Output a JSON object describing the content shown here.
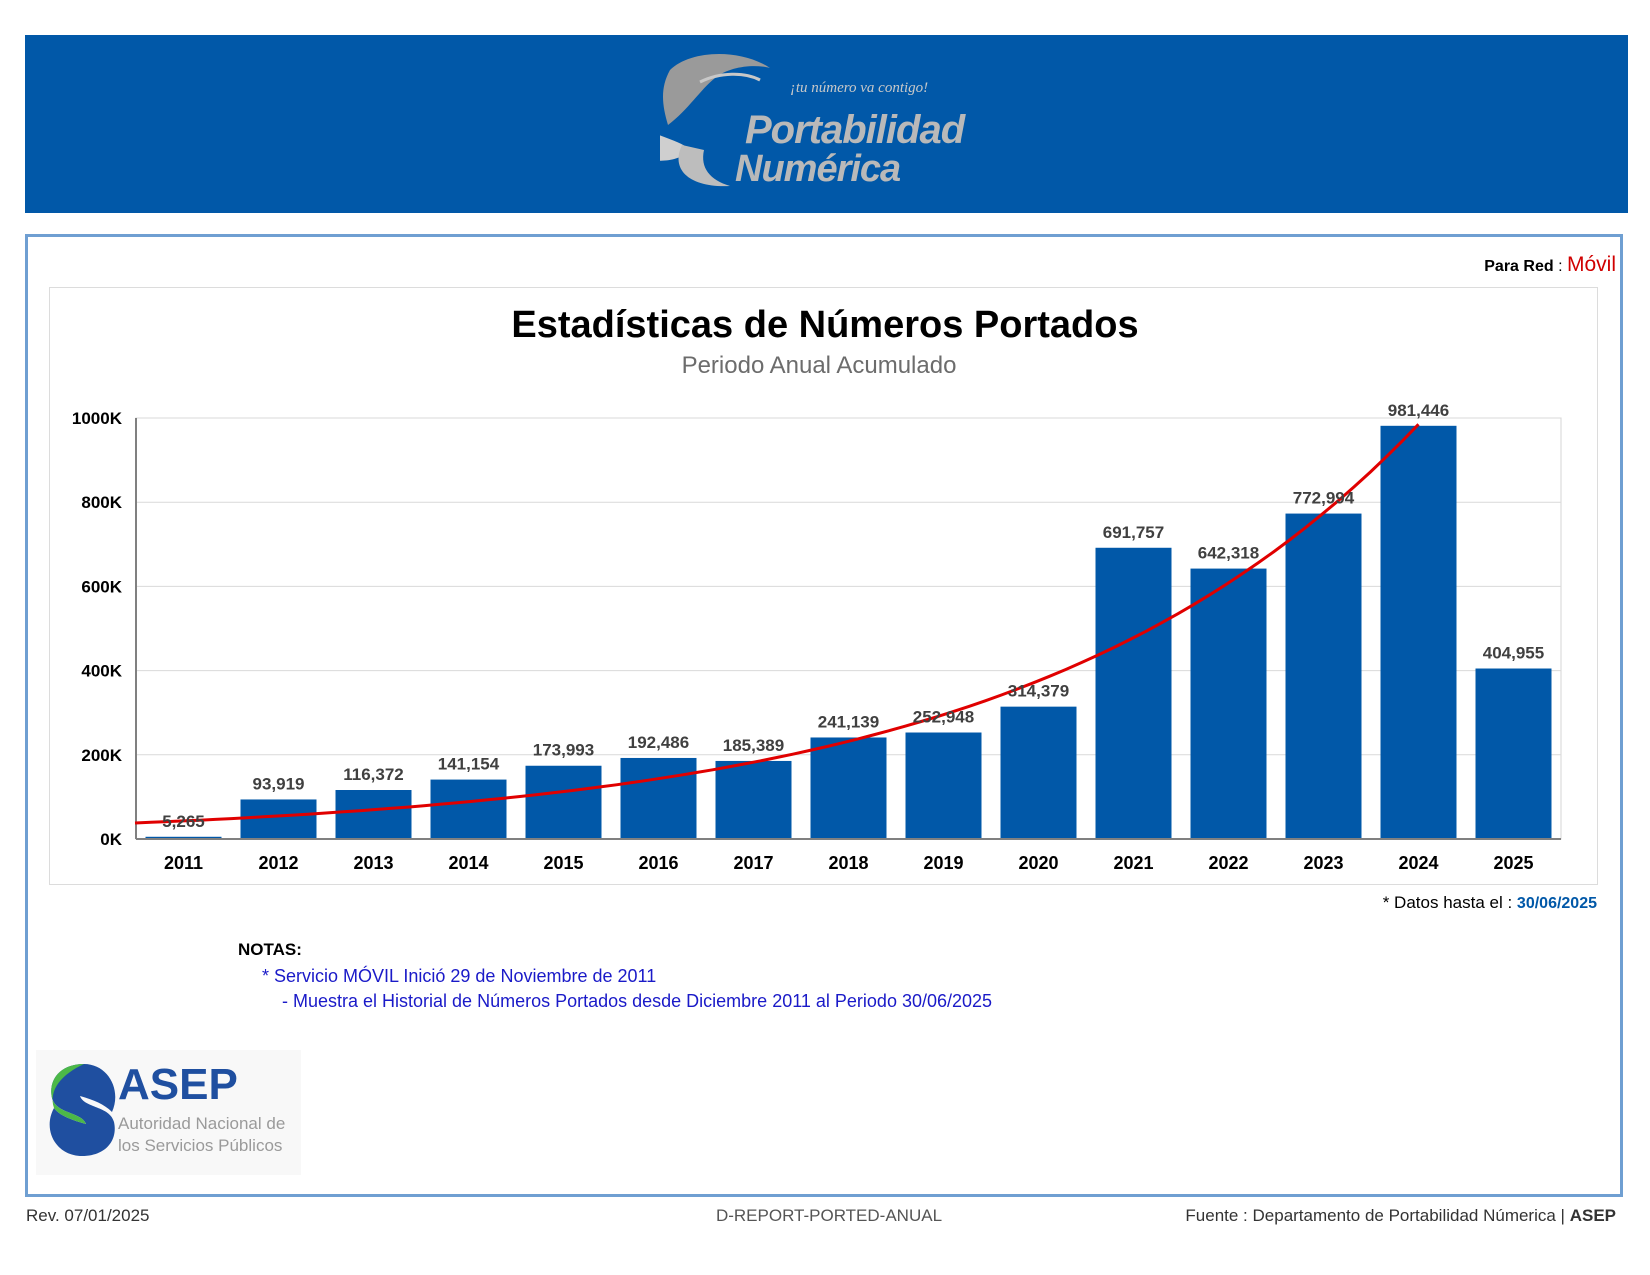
{
  "header": {
    "logo_tagline": "¡tu número va contigo!",
    "logo_word1": "Portabilidad",
    "logo_word2": "Numérica",
    "banner_color": "#0158a8"
  },
  "network": {
    "label": "Para Red",
    "separator": ":",
    "value": "Móvil"
  },
  "chart_data": {
    "type": "bar",
    "title": "Estadísticas de Números Portados",
    "subtitle": "Periodo Anual Acumulado",
    "xlabel": "",
    "ylabel": "",
    "categories": [
      "2011",
      "2012",
      "2013",
      "2014",
      "2015",
      "2016",
      "2017",
      "2018",
      "2019",
      "2020",
      "2021",
      "2022",
      "2023",
      "2024",
      "2025"
    ],
    "values": [
      5265,
      93919,
      116372,
      141154,
      173993,
      192486,
      185389,
      241139,
      252948,
      314379,
      691757,
      642318,
      772994,
      981446,
      404955
    ],
    "value_labels": [
      "5,265",
      "93,919",
      "116,372",
      "141,154",
      "173,993",
      "192,486",
      "185,389",
      "241,139",
      "252,948",
      "314,379",
      "691,757",
      "642,318",
      "772,994",
      "981,446",
      "404,955"
    ],
    "ylim": [
      0,
      1000000
    ],
    "yticks": [
      0,
      200000,
      400000,
      600000,
      800000,
      1000000
    ],
    "ytick_labels": [
      "0K",
      "200K",
      "400K",
      "600K",
      "800K",
      "1000K"
    ],
    "grid": true,
    "trendline": {
      "type": "exponential",
      "color": "#e00000",
      "start_value": 38000,
      "end_value": 985000
    },
    "bar_color": "#0158a8"
  },
  "data_until": {
    "label": "* Datos hasta el :",
    "date": "30/06/2025"
  },
  "notes": {
    "title": "NOTAS:",
    "line1": "* Servicio MÓVIL Inició 29 de Noviembre de 2011",
    "line2": "- Muestra el Historial de Números Portados desde Diciembre 2011 al Periodo 30/06/2025"
  },
  "asep_logo": {
    "name": "ASEP",
    "sub1": "Autoridad Nacional de",
    "sub2": "los Servicios Públicos"
  },
  "footer": {
    "revision": "Rev. 07/01/2025",
    "code": "D-REPORT-PORTED-ANUAL",
    "source_label": "Fuente : Departamento de Portabilidad Númerica |",
    "source_org": "ASEP"
  }
}
